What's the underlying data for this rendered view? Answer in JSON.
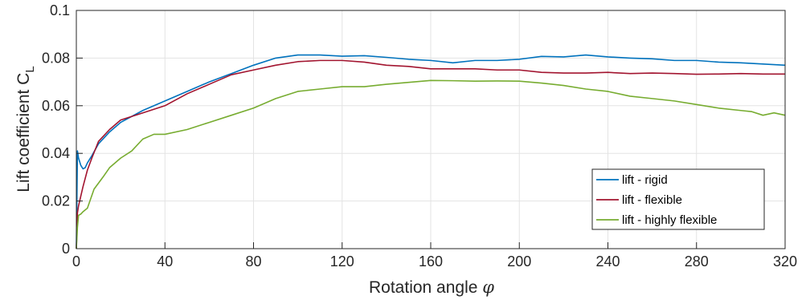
{
  "chart_data": {
    "type": "line",
    "xlabel": "Rotation angle",
    "xlabel_symbol": "φ",
    "ylabel": "Lift coefficient C",
    "ylabel_subscript": "L",
    "xlim": [
      0,
      320
    ],
    "ylim": [
      0,
      0.1
    ],
    "xticks": [
      0,
      40,
      80,
      120,
      160,
      200,
      240,
      280,
      320
    ],
    "xtick_labels": [
      "0",
      "40",
      "80",
      "120",
      "160",
      "200",
      "240",
      "280",
      "320"
    ],
    "yticks": [
      0,
      0.02,
      0.04,
      0.06,
      0.08,
      0.1
    ],
    "ytick_labels": [
      "0",
      "0.02",
      "0.04",
      "0.06",
      "0.08",
      "0.1"
    ],
    "grid": true,
    "legend_position": "lower-right",
    "series": [
      {
        "name": "lift - rigid",
        "color": "#0072BD",
        "x": [
          0,
          0.5,
          1,
          2,
          3,
          4,
          5,
          7,
          10,
          15,
          20,
          30,
          40,
          50,
          60,
          70,
          80,
          90,
          100,
          110,
          120,
          130,
          140,
          150,
          160,
          170,
          180,
          190,
          200,
          210,
          220,
          230,
          240,
          250,
          260,
          270,
          280,
          290,
          300,
          310,
          320
        ],
        "y": [
          0.0,
          0.041,
          0.038,
          0.035,
          0.0335,
          0.034,
          0.036,
          0.039,
          0.044,
          0.049,
          0.053,
          0.058,
          0.062,
          0.066,
          0.07,
          0.0735,
          0.077,
          0.08,
          0.0813,
          0.0813,
          0.0808,
          0.081,
          0.0803,
          0.0795,
          0.079,
          0.078,
          0.079,
          0.079,
          0.0795,
          0.0807,
          0.0805,
          0.0813,
          0.0805,
          0.08,
          0.0797,
          0.079,
          0.079,
          0.0783,
          0.078,
          0.0775,
          0.077
        ]
      },
      {
        "name": "lift - flexible",
        "color": "#A2142F",
        "x": [
          0,
          0.5,
          1,
          2,
          3,
          5,
          7,
          10,
          15,
          20,
          30,
          40,
          50,
          60,
          70,
          80,
          90,
          100,
          110,
          120,
          130,
          140,
          150,
          160,
          170,
          180,
          190,
          200,
          210,
          220,
          230,
          240,
          250,
          260,
          270,
          280,
          290,
          300,
          310,
          320
        ],
        "y": [
          0.0,
          0.015,
          0.018,
          0.022,
          0.026,
          0.033,
          0.038,
          0.045,
          0.05,
          0.054,
          0.057,
          0.06,
          0.065,
          0.069,
          0.073,
          0.075,
          0.077,
          0.0785,
          0.079,
          0.079,
          0.0783,
          0.077,
          0.0765,
          0.0755,
          0.0755,
          0.0755,
          0.075,
          0.075,
          0.074,
          0.0737,
          0.0737,
          0.074,
          0.0735,
          0.0737,
          0.0735,
          0.0732,
          0.0733,
          0.0735,
          0.0733,
          0.0733
        ]
      },
      {
        "name": "lift - highly flexible",
        "color": "#77AC30",
        "x": [
          0,
          0.5,
          1,
          2,
          3,
          5,
          8,
          12,
          15,
          20,
          25,
          30,
          35,
          40,
          50,
          60,
          70,
          80,
          90,
          100,
          110,
          120,
          130,
          140,
          150,
          160,
          170,
          180,
          190,
          200,
          210,
          220,
          230,
          240,
          250,
          260,
          270,
          280,
          290,
          300,
          305,
          310,
          315,
          320
        ],
        "y": [
          0.0,
          0.009,
          0.014,
          0.0145,
          0.0155,
          0.017,
          0.025,
          0.03,
          0.034,
          0.038,
          0.041,
          0.046,
          0.048,
          0.048,
          0.05,
          0.053,
          0.056,
          0.059,
          0.063,
          0.066,
          0.067,
          0.068,
          0.068,
          0.069,
          0.0698,
          0.0706,
          0.0705,
          0.0703,
          0.0704,
          0.0703,
          0.0695,
          0.0685,
          0.067,
          0.066,
          0.064,
          0.063,
          0.062,
          0.0605,
          0.059,
          0.058,
          0.0575,
          0.056,
          0.057,
          0.056
        ]
      }
    ]
  }
}
